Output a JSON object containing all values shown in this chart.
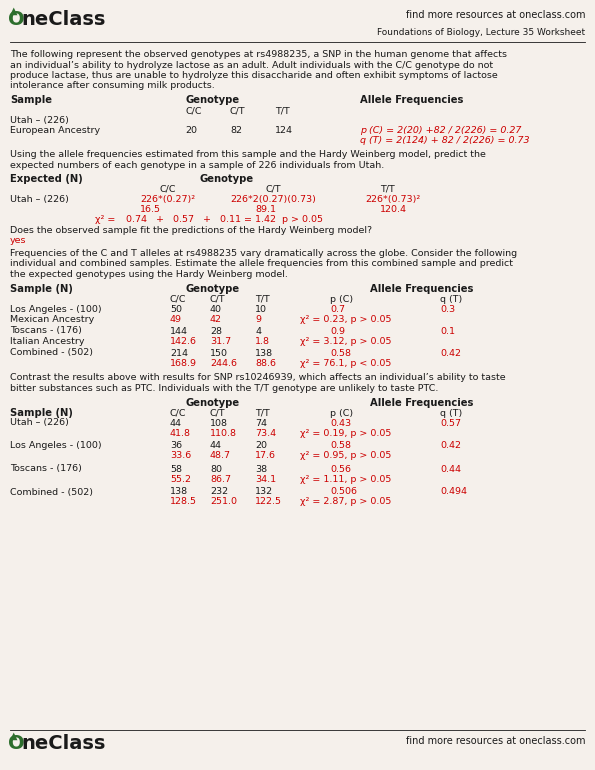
{
  "bg_color": "#f5f0eb",
  "text_color": "#1a1a1a",
  "red_color": "#cc0000",
  "green_color": "#2d6e2d",
  "top_right": "find more resources at oneclass.com",
  "subtitle": "Foundations of Biology, Lecture 35 Worksheet",
  "para1": "The following represent the observed genotypes at rs4988235, a SNP in the human genome that affects\nan individual’s ability to hydrolyze lactose as an adult. Adult individuals with the C/C genotype do not\nproduce lactase, thus are unable to hydrolyze this disaccharide and often exhibit symptoms of lactose\nintolerance after consuming milk products.",
  "table1_af1": "p (C) = 2(20) +82 / 2(226) = 0.27",
  "table1_af2": "q (T) = 2(124) + 82 / 2(226) = 0.73",
  "para2": "Using the allele frequencies estimated from this sample and the Hardy Weinberg model, predict the\nexpected numbers of each genotype in a sample of 226 individuals from Utah.",
  "q_hw": "Does the observed sample fit the predictions of the Hardy Weinberg model?",
  "q_hw_ans": "yes",
  "para3": "Frequencies of the C and T alleles at rs4988235 vary dramatically across the globe. Consider the following\nindividual and combined samples. Estimate the allele frequencies from this combined sample and predict\nthe expected genotypes using the Hardy Weinberg model.",
  "table3_rows": [
    {
      "label": "Los Angeles - (100)",
      "sub": "Mexican Ancestry",
      "cc": "50",
      "ct": "40",
      "tt": "10",
      "pC": "0.7",
      "qT": "0.3",
      "cc_exp": "49",
      "ct_exp": "42",
      "tt_exp": "9",
      "chi": "χ² = 0.23, p > 0.05"
    },
    {
      "label": "Toscans - (176)",
      "sub": "Italian Ancestry",
      "cc": "144",
      "ct": "28",
      "tt": "4",
      "pC": "0.9",
      "qT": "0.1",
      "cc_exp": "142.6",
      "ct_exp": "31.7",
      "tt_exp": "1.8",
      "chi": "χ² = 3.12, p > 0.05"
    },
    {
      "label": "Combined - (502)",
      "sub": "",
      "cc": "214",
      "ct": "150",
      "tt": "138",
      "pC": "0.58",
      "qT": "0.42",
      "cc_exp": "168.9",
      "ct_exp": "244.6",
      "tt_exp": "88.6",
      "chi": "χ² = 76.1, p < 0.05"
    }
  ],
  "para4": "Contrast the results above with results for SNP rs10246939, which affects an individual’s ability to taste\nbitter substances such as PTC. Individuals with the T/T genotype are unlikely to taste PTC.",
  "table4_rows": [
    {
      "label": "Utah – (226)",
      "cc": "44",
      "ct": "108",
      "tt": "74",
      "pC": "0.43",
      "qT": "0.57",
      "cc_exp": "41.8",
      "ct_exp": "110.8",
      "tt_exp": "73.4",
      "chi": "χ² = 0.19, p > 0.05"
    },
    {
      "label": "Los Angeles - (100)",
      "cc": "36",
      "ct": "44",
      "tt": "20",
      "pC": "0.58",
      "qT": "0.42",
      "cc_exp": "33.6",
      "ct_exp": "48.7",
      "tt_exp": "17.6",
      "chi": "χ² = 0.95, p > 0.05"
    },
    {
      "label": "Toscans - (176)",
      "cc": "58",
      "ct": "80",
      "tt": "38",
      "pC": "0.56",
      "qT": "0.44",
      "cc_exp": "55.2",
      "ct_exp": "86.7",
      "tt_exp": "34.1",
      "chi": "χ² = 1.11, p > 0.05"
    },
    {
      "label": "Combined - (502)",
      "cc": "138",
      "ct": "232",
      "tt": "132",
      "pC": "0.506",
      "qT": "0.494",
      "cc_exp": "128.5",
      "ct_exp": "251.0",
      "tt_exp": "122.5",
      "chi": "χ² = 2.87, p > 0.05"
    }
  ],
  "bottom_right": "find more resources at oneclass.com"
}
